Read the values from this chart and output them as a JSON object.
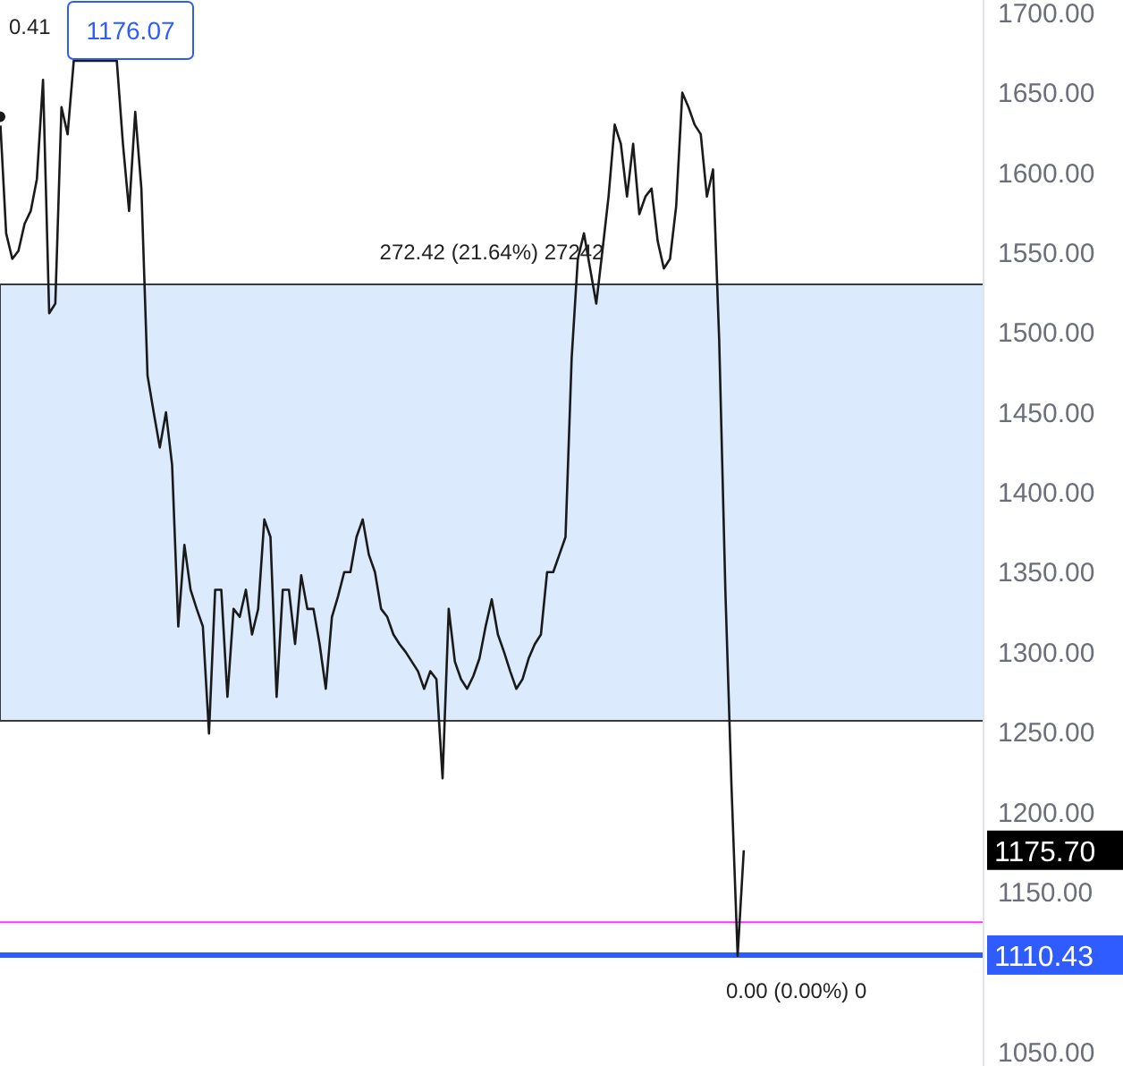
{
  "chart_data": {
    "type": "line",
    "categories": [
      null,
      null,
      null,
      null,
      null,
      null,
      null,
      null,
      null,
      null,
      null,
      null,
      null,
      null,
      null,
      null,
      null,
      null,
      null,
      null,
      null,
      null,
      null,
      null,
      null,
      null,
      null,
      null,
      null,
      null,
      null,
      null,
      null,
      null,
      null,
      null,
      null,
      null,
      null,
      null,
      null,
      null,
      null,
      null,
      null,
      null,
      null,
      null,
      null,
      null,
      null,
      null,
      null,
      null,
      null,
      null,
      null,
      null,
      null,
      null,
      null,
      null,
      null,
      null,
      null,
      null,
      null,
      null,
      null,
      null,
      null,
      null,
      null,
      null,
      null,
      null,
      null,
      null,
      null,
      null,
      null,
      null,
      null,
      null,
      null,
      null,
      null,
      null,
      null,
      null,
      null,
      null,
      null,
      null,
      null,
      null,
      null,
      null,
      null,
      null,
      null,
      null,
      null,
      null,
      null,
      null,
      null,
      null,
      null,
      null,
      null,
      null,
      null,
      null,
      null,
      null,
      null,
      null,
      null,
      null,
      null,
      null,
      null,
      null,
      null,
      null,
      null,
      null,
      null,
      null,
      null,
      null,
      null,
      null,
      null,
      null,
      null,
      null,
      null,
      null,
      null,
      null,
      null,
      null,
      null,
      null,
      null,
      null,
      null,
      null,
      null,
      null,
      null,
      null,
      null,
      null,
      null,
      null,
      null,
      null,
      null
    ],
    "series": [
      {
        "color": "#1a1a1a",
        "values": [
          1635,
          1562,
          1546,
          1551,
          1568,
          1576,
          1596,
          1658,
          1512,
          1518,
          1641,
          1624,
          1670,
          null,
          null,
          null,
          null,
          null,
          null,
          1670,
          1618,
          1576,
          1638,
          1590,
          1473,
          1450,
          1428,
          1450,
          1417,
          1316,
          1367,
          1339,
          1327,
          1316,
          1249,
          1339,
          1339,
          1272,
          1327,
          1322,
          1339,
          1311,
          1327,
          1383,
          1372,
          1272,
          1339,
          1339,
          1305,
          1348,
          1327,
          1327,
          1305,
          1277,
          1322,
          1335,
          1350,
          1350,
          1372,
          1383,
          1361,
          1350,
          1327,
          1322,
          1311,
          1305,
          1300,
          1294,
          1288,
          1277,
          1288,
          1283,
          1221,
          1327,
          1294,
          1283,
          1277,
          1285,
          1296,
          1316,
          1333,
          1311,
          1300,
          1288,
          1277,
          1283,
          1296,
          1305,
          1311,
          1350,
          1350,
          1361,
          1372,
          1484,
          1546,
          1562,
          1540,
          1518,
          1551,
          1585,
          1630,
          1618,
          1585,
          1618,
          1574,
          1585,
          1590,
          1557,
          1540,
          1546,
          1579,
          1650,
          1641,
          1630,
          1624,
          1585,
          1602,
          1495,
          1339,
          1216,
          1110,
          1176,
          null,
          null,
          null,
          null,
          null,
          null,
          null,
          null,
          null,
          null,
          null,
          null,
          null,
          null,
          null,
          null,
          null,
          null,
          null,
          null,
          null,
          null,
          null,
          null,
          null,
          null,
          null,
          null,
          null,
          null,
          null,
          null,
          null,
          null,
          null,
          null,
          null,
          null,
          null
        ]
      }
    ],
    "ylim": [
      1041,
      1708
    ],
    "yticks": [
      {
        "value": 1050,
        "label": "1050.00"
      },
      {
        "value": 1150,
        "label": "1150.00"
      },
      {
        "value": 1200,
        "label": "1200.00"
      },
      {
        "value": 1250,
        "label": "1250.00"
      },
      {
        "value": 1300,
        "label": "1300.00"
      },
      {
        "value": 1350,
        "label": "1350.00"
      },
      {
        "value": 1400,
        "label": "1400.00"
      },
      {
        "value": 1450,
        "label": "1450.00"
      },
      {
        "value": 1500,
        "label": "1500.00"
      },
      {
        "value": 1550,
        "label": "1550.00"
      },
      {
        "value": 1600,
        "label": "1600.00"
      },
      {
        "value": 1650,
        "label": "1650.00"
      },
      {
        "value": 1700,
        "label": "1700.00"
      }
    ],
    "tick_labels": "y",
    "marker": "none",
    "bands": [
      {
        "axis": "y",
        "from": 1257,
        "to": 1530,
        "label": "272.42 (21.64%) 27242",
        "color": "#dbeafc"
      }
    ],
    "ref_lines": [
      {
        "axis": "y",
        "value": 1131,
        "label": null,
        "color": "#ff33ff"
      },
      {
        "axis": "y",
        "value": 1110.43,
        "label": "1110.43",
        "color": "#2f5cff"
      }
    ],
    "annotations": [
      "0.41",
      "1176.07",
      "1175.70",
      {
        "text": "0.00 (0.00%) 0",
        "y": 1110.43
      }
    ]
  }
}
